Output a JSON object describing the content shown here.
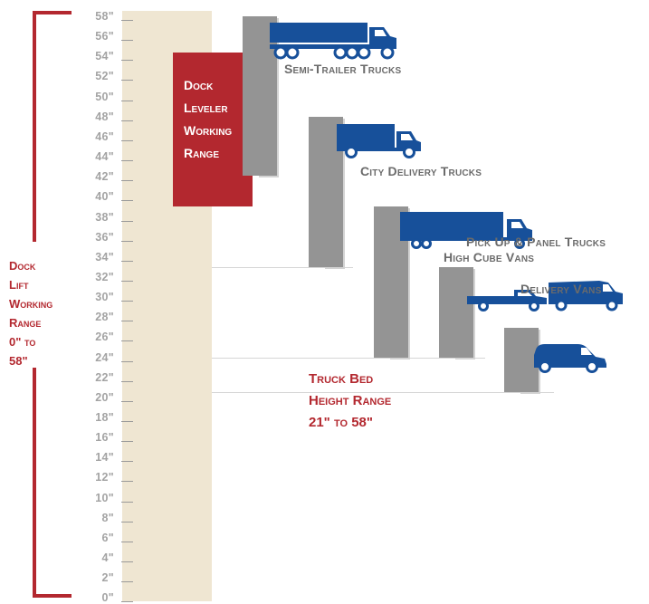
{
  "scale": {
    "ticks": [
      "58\"",
      "56\"",
      "54\"",
      "52\"",
      "50\"",
      "48\"",
      "46\"",
      "44\"",
      "42\"",
      "40\"",
      "38\"",
      "36\"",
      "34\"",
      "32\"",
      "30\"",
      "28\"",
      "26\"",
      "24\"",
      "22\"",
      "20\"",
      "18\"",
      "16\"",
      "14\"",
      "12\"",
      "10\"",
      "8\"",
      "6\"",
      "4\"",
      "2\"",
      "0\""
    ],
    "max_inches": 58,
    "min_inches": 0
  },
  "dock_lift": {
    "label_lines": [
      "Dock",
      "Lift",
      "Working",
      "Range",
      "0\" to",
      "58\""
    ],
    "range_inches": [
      0,
      58
    ]
  },
  "dock_leveler": {
    "label_lines": [
      "Dock",
      "Leveler",
      "Working",
      "Range"
    ],
    "range_inches": [
      39,
      54
    ]
  },
  "truck_bed": {
    "label_lines": [
      "Truck Bed",
      "Height Range",
      "21\" to 58\""
    ],
    "range_inches": [
      21,
      58
    ]
  },
  "trucks": [
    {
      "label": "Semi-Trailer Trucks",
      "range_inches": [
        42,
        58
      ]
    },
    {
      "label": "City Delivery Trucks",
      "range_inches": [
        33,
        48
      ]
    },
    {
      "label": "High Cube Vans",
      "range_inches": [
        24,
        39
      ]
    },
    {
      "label": "Pick Up & Panel Trucks",
      "range_inches": [
        24,
        30
      ]
    },
    {
      "label": "Delivery Vans",
      "range_inches": [
        21,
        27
      ]
    }
  ],
  "colors": {
    "accent_red": "#b3282f",
    "truck_blue": "#17509a",
    "bar_gray": "#949494",
    "scale_beige": "#efe6d2"
  },
  "icons": [
    "semi-trailer-truck-icon",
    "city-delivery-truck-icon",
    "high-cube-van-icon",
    "pickup-truck-icon",
    "panel-truck-icon",
    "delivery-van-icon"
  ]
}
